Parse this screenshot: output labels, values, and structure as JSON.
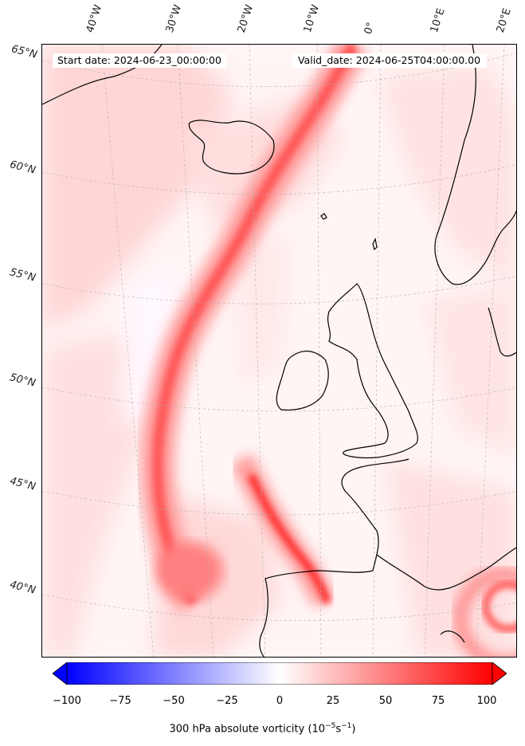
{
  "header": {
    "start_date": "Start date: 2024-06-23_00:00:00",
    "valid_date": "Valid_date: 2024-06-25T04:00:00.00"
  },
  "longitude_labels": [
    "40°W",
    "30°W",
    "20°W",
    "10°W",
    "0°",
    "10°E",
    "20°E"
  ],
  "latitude_labels": [
    "65°N",
    "60°N",
    "55°N",
    "50°N",
    "45°N",
    "40°N"
  ],
  "colorbar": {
    "ticks": [
      "−100",
      "−75",
      "−50",
      "−25",
      "0",
      "25",
      "50",
      "75",
      "100"
    ],
    "label_main": "300 hPa absolute vorticity (10",
    "label_exp1": "−5",
    "label_mid": "s",
    "label_exp2": "−1",
    "label_end": ")",
    "min_color": "#0000ff",
    "mid_color": "#ffffff",
    "max_color": "#ff0000"
  },
  "colors": {
    "coast": "#000000",
    "background_vorticity": "#fff0f0",
    "jet_core": "#ff3b3b"
  }
}
